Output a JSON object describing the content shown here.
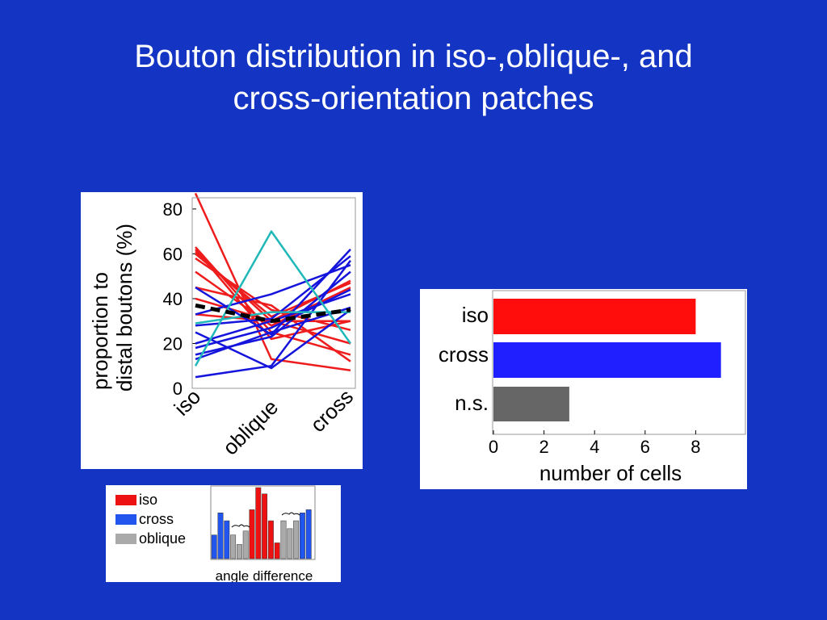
{
  "slide": {
    "title_line1": "Bouton distribution in iso-,oblique-, and",
    "title_line2": "cross-orientation patches"
  },
  "chart_data": [
    {
      "id": "line-chart",
      "type": "line",
      "categories": [
        "iso",
        "oblique",
        "cross"
      ],
      "ylabel_line1": "proportion to",
      "ylabel_line2": "distal boutons (%)",
      "ylim": [
        0,
        85
      ],
      "yticks": [
        0,
        20,
        40,
        60,
        80
      ],
      "colors": {
        "iso": "#ee1c1c",
        "cross": "#1414dc",
        "other": "#20b8b8",
        "mean": "#000000"
      },
      "series": [
        {
          "group": "iso",
          "values": [
            87,
            13,
            8
          ]
        },
        {
          "group": "iso",
          "values": [
            63,
            25,
            15
          ]
        },
        {
          "group": "iso",
          "values": [
            62,
            22,
            30
          ]
        },
        {
          "group": "iso",
          "values": [
            61,
            30,
            30
          ]
        },
        {
          "group": "iso",
          "values": [
            60,
            32,
            47
          ]
        },
        {
          "group": "iso",
          "values": [
            58,
            35,
            26
          ]
        },
        {
          "group": "iso",
          "values": [
            52,
            28,
            45
          ]
        },
        {
          "group": "iso",
          "values": [
            45,
            37,
            12
          ]
        },
        {
          "group": "iso",
          "values": [
            40,
            30,
            20
          ]
        },
        {
          "group": "iso",
          "values": [
            33,
            30,
            48
          ]
        },
        {
          "group": "cross",
          "values": [
            45,
            24,
            62
          ]
        },
        {
          "group": "cross",
          "values": [
            33,
            42,
            55
          ]
        },
        {
          "group": "cross",
          "values": [
            28,
            31,
            59
          ]
        },
        {
          "group": "cross",
          "values": [
            20,
            30,
            42
          ]
        },
        {
          "group": "cross",
          "values": [
            18,
            27,
            44
          ]
        },
        {
          "group": "cross",
          "values": [
            15,
            23,
            52
          ]
        },
        {
          "group": "cross",
          "values": [
            13,
            25,
            36
          ]
        },
        {
          "group": "cross",
          "values": [
            5,
            10,
            57
          ]
        },
        {
          "group": "cross",
          "values": [
            25,
            9,
            35
          ]
        },
        {
          "group": "other",
          "values": [
            10,
            70,
            20
          ]
        },
        {
          "group": "other",
          "values": [
            29,
            34,
            34
          ]
        },
        {
          "group": "mean",
          "dashed": true,
          "values": [
            37,
            30,
            35
          ]
        }
      ]
    },
    {
      "id": "bar-chart",
      "type": "bar",
      "orientation": "horizontal",
      "categories": [
        "iso",
        "cross",
        "n.s."
      ],
      "values": [
        8,
        9,
        3
      ],
      "colors": [
        "#ff0d0d",
        "#1f1fff",
        "#666666"
      ],
      "xlabel": "number of cells",
      "xlim": [
        0,
        10
      ],
      "xticks": [
        0,
        2,
        4,
        6,
        8
      ]
    }
  ],
  "legend_panel": {
    "items": [
      {
        "label": "iso",
        "color": "#ee1111"
      },
      {
        "label": "cross",
        "color": "#2255ee"
      },
      {
        "label": "oblique",
        "color": "#aaaaaa"
      }
    ],
    "histogram": {
      "values": [
        30,
        58,
        48,
        30,
        18,
        35,
        62,
        90,
        82,
        48,
        20,
        48,
        38,
        48,
        58,
        62
      ],
      "groups": [
        "cross",
        "cross",
        "cross",
        "oblique",
        "oblique",
        "oblique",
        "iso",
        "iso",
        "iso",
        "iso",
        "iso",
        "oblique",
        "oblique",
        "oblique",
        "cross",
        "cross"
      ]
    },
    "caption": "angle difference"
  }
}
